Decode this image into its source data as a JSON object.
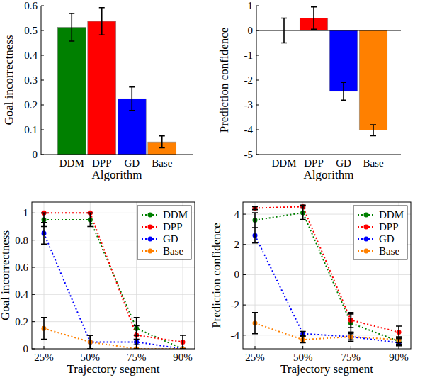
{
  "chart_data": [
    {
      "type": "bar",
      "x_label": "Algorithm",
      "y_label": "Goal incorrectness",
      "categories": [
        "DDM",
        "DPP",
        "GD",
        "Base"
      ],
      "values": [
        0.513,
        0.537,
        0.225,
        0.051
      ],
      "errors": [
        0.056,
        0.055,
        0.047,
        0.024
      ],
      "colors": [
        "#008000",
        "#ff0000",
        "#0000ff",
        "#ff8000"
      ],
      "ylim": [
        0,
        0.6
      ],
      "yticks": [
        0,
        0.1,
        0.2,
        0.3,
        0.4,
        0.5,
        0.6
      ],
      "grid": false
    },
    {
      "type": "bar",
      "x_label": "Algorithm",
      "y_label": "Prediction confidence",
      "categories": [
        "DDM",
        "DPP",
        "GD",
        "Base"
      ],
      "values": [
        0.0,
        0.5,
        -2.45,
        -4.02
      ],
      "errors": [
        0.5,
        0.45,
        0.36,
        0.22
      ],
      "colors": [
        "#008000",
        "#ff0000",
        "#0000ff",
        "#ff8000"
      ],
      "ylim": [
        -5,
        1
      ],
      "yticks": [
        -5,
        -4,
        -3,
        -2,
        -1,
        0,
        1
      ],
      "grid": false
    },
    {
      "type": "line",
      "x_label": "Trajectory segment",
      "y_label": "Goal incorrectness",
      "categories": [
        "25%",
        "50%",
        "75%",
        "90%"
      ],
      "series": [
        {
          "name": "DDM",
          "color": "#008000",
          "marker": "circle",
          "line_style": "dotted",
          "values": [
            0.95,
            0.95,
            0.15,
            0.0
          ],
          "errors": [
            0.05,
            0.05,
            0.08,
            0.0
          ]
        },
        {
          "name": "DPP",
          "color": "#ff0000",
          "marker": "circle",
          "line_style": "dotted",
          "values": [
            1.0,
            1.0,
            0.1,
            0.05
          ],
          "errors": [
            0.0,
            0.0,
            0.07,
            0.05
          ]
        },
        {
          "name": "GD",
          "color": "#0000ff",
          "marker": "circle",
          "line_style": "dotted",
          "values": [
            0.85,
            0.05,
            0.05,
            0.0
          ],
          "errors": [
            0.08,
            0.05,
            0.05,
            0.0
          ]
        },
        {
          "name": "Base",
          "color": "#ff8000",
          "marker": "circle",
          "line_style": "dotted",
          "values": [
            0.15,
            0.05,
            0.0,
            0.0
          ],
          "errors": [
            0.08,
            0.05,
            0.0,
            0.0
          ]
        }
      ],
      "ylim": [
        0,
        1.08
      ],
      "yticks": [
        0,
        0.2,
        0.4,
        0.6,
        0.8,
        1
      ],
      "grid": true,
      "legend": "north east"
    },
    {
      "type": "line",
      "x_label": "Trajectory segment",
      "y_label": "Prediction confidence",
      "categories": [
        "25%",
        "50%",
        "75%",
        "90%"
      ],
      "series": [
        {
          "name": "DDM",
          "color": "#008000",
          "marker": "circle",
          "line_style": "dotted",
          "values": [
            3.6,
            4.1,
            -3.2,
            -4.4
          ],
          "errors": [
            0.5,
            0.45,
            0.6,
            0.2
          ]
        },
        {
          "name": "DPP",
          "color": "#ff0000",
          "marker": "circle",
          "line_style": "dotted",
          "values": [
            4.4,
            4.5,
            -3.0,
            -3.8
          ],
          "errors": [
            0.1,
            0.1,
            0.5,
            0.4
          ]
        },
        {
          "name": "GD",
          "color": "#0000ff",
          "marker": "circle",
          "line_style": "dotted",
          "values": [
            2.6,
            -3.9,
            -4.1,
            -4.5
          ],
          "errors": [
            0.5,
            0.15,
            0.3,
            0.2
          ]
        },
        {
          "name": "Base",
          "color": "#ff8000",
          "marker": "circle",
          "line_style": "dotted",
          "values": [
            -3.2,
            -4.3,
            -4.1,
            -4.3
          ],
          "errors": [
            0.7,
            0.2,
            0.2,
            0.2
          ]
        }
      ],
      "ylim": [
        -4.9,
        4.8
      ],
      "yticks": [
        -4,
        -2,
        0,
        2,
        4
      ],
      "grid": true,
      "legend": "north east"
    }
  ]
}
